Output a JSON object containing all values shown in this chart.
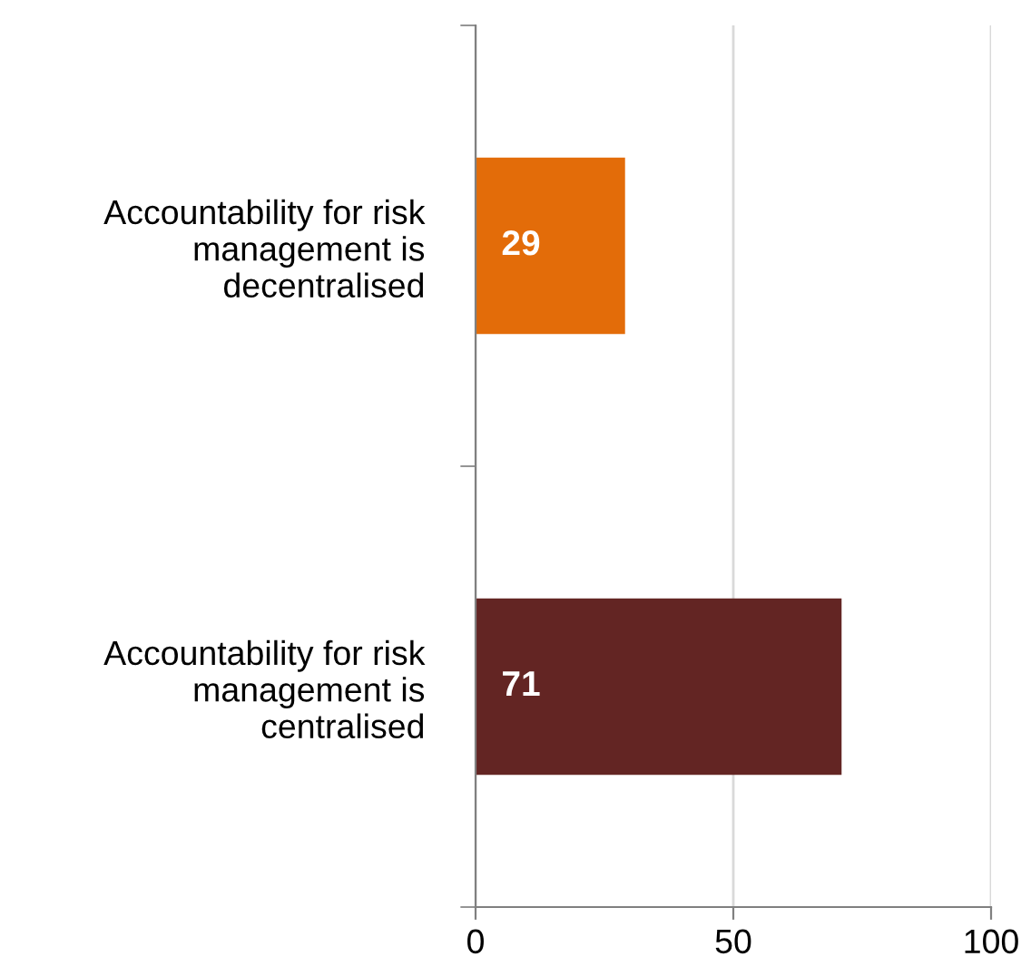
{
  "chart_data": {
    "type": "bar",
    "orientation": "horizontal",
    "categories": [
      "Accountability for risk\nmanagement is\ndecentralised",
      "Accountability for risk\nmanagement is\ncentralised"
    ],
    "values": [
      29,
      71
    ],
    "colors": [
      "#e36c09",
      "#632523"
    ],
    "xlim": [
      0,
      100
    ],
    "xticks": [
      0,
      50,
      100
    ],
    "grid": "x",
    "data_labels": true
  }
}
